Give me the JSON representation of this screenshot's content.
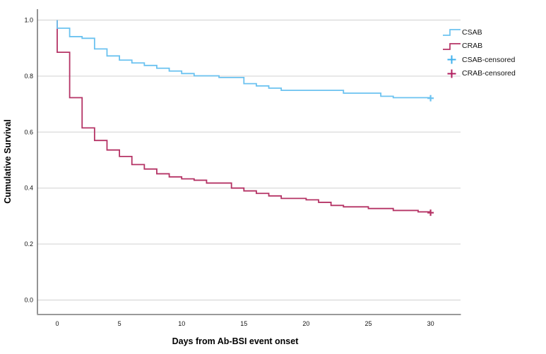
{
  "chart_data": {
    "type": "line",
    "subtype": "kaplan-meier-step",
    "title": "",
    "xlabel": "Days from Ab-BSI event onset",
    "ylabel": "Cumulative Survival",
    "xlim": [
      -1.6,
      32.4
    ],
    "ylim": [
      0.0,
      1.0
    ],
    "grid": "horizontal",
    "x_ticks": [
      0,
      5,
      10,
      15,
      20,
      25,
      30
    ],
    "y_ticks": [
      {
        "v": 0.0,
        "label": "0.0"
      },
      {
        "v": 0.2,
        "label": "0.2"
      },
      {
        "v": 0.4,
        "label": "0.4"
      },
      {
        "v": 0.6,
        "label": "0.6"
      },
      {
        "v": 0.8,
        "label": "0.8"
      },
      {
        "v": 1.0,
        "label": "1.0"
      }
    ],
    "colors": {
      "grid": "#DEDEDE",
      "y_axis": "#4D4D4D",
      "x_axis": "#9A9A9A",
      "text": "#111111"
    },
    "series": [
      {
        "name": "CRAB",
        "color": "#B53365",
        "start": [
          0,
          1.0
        ],
        "steps": [
          [
            0,
            0.885
          ],
          [
            1,
            0.723
          ],
          [
            2,
            0.615
          ],
          [
            3,
            0.57
          ],
          [
            4,
            0.536
          ],
          [
            5,
            0.513
          ],
          [
            6,
            0.484
          ],
          [
            7,
            0.468
          ],
          [
            8,
            0.451
          ],
          [
            9,
            0.44
          ],
          [
            10,
            0.433
          ],
          [
            11,
            0.428
          ],
          [
            12,
            0.418
          ],
          [
            14,
            0.4
          ],
          [
            15,
            0.39
          ],
          [
            16,
            0.381
          ],
          [
            17,
            0.372
          ],
          [
            18,
            0.363
          ],
          [
            20,
            0.358
          ],
          [
            21,
            0.349
          ],
          [
            22,
            0.338
          ],
          [
            23,
            0.333
          ],
          [
            25,
            0.327
          ],
          [
            27,
            0.32
          ],
          [
            29,
            0.315
          ]
        ],
        "end_day": 30,
        "censored": [
          [
            30,
            0.312
          ]
        ]
      },
      {
        "name": "CSAB",
        "color": "#6BC2F0",
        "start": [
          0,
          1.0
        ],
        "steps": [
          [
            0,
            0.971
          ],
          [
            1,
            0.941
          ],
          [
            2,
            0.935
          ],
          [
            3,
            0.897
          ],
          [
            4,
            0.872
          ],
          [
            5,
            0.857
          ],
          [
            6,
            0.847
          ],
          [
            7,
            0.838
          ],
          [
            8,
            0.828
          ],
          [
            9,
            0.818
          ],
          [
            10,
            0.809
          ],
          [
            11,
            0.801
          ],
          [
            13,
            0.795
          ],
          [
            15,
            0.773
          ],
          [
            16,
            0.765
          ],
          [
            17,
            0.757
          ],
          [
            18,
            0.749
          ],
          [
            23,
            0.739
          ],
          [
            26,
            0.728
          ],
          [
            27,
            0.723
          ]
        ],
        "end_day": 30,
        "censored": [
          [
            30,
            0.721
          ]
        ]
      }
    ],
    "legend": {
      "position": "top-right-outside",
      "entries": [
        {
          "label": "CSAB",
          "marker": "step",
          "color": "#6BC2F0"
        },
        {
          "label": "CRAB",
          "marker": "step",
          "color": "#B53365"
        },
        {
          "label": "CSAB-censored",
          "marker": "plus",
          "color": "#3FB0EC"
        },
        {
          "label": "CRAB-censored",
          "marker": "plus",
          "color": "#B01C5E"
        }
      ]
    }
  }
}
